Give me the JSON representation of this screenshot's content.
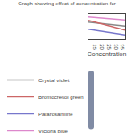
{
  "chart_data": {
    "type": "line",
    "title": "Graph showing effect of concentration for",
    "xlabel": "Concentration",
    "x": [
      10,
      36
    ],
    "series": [
      {
        "name": "Crystal violet",
        "color": "#888888",
        "values": [
          0.72,
          0.55
        ]
      },
      {
        "name": "Bromocresol green",
        "color": "#cc6666",
        "values": [
          0.8,
          0.38
        ]
      },
      {
        "name": "Pararosaníline",
        "color": "#7777cc",
        "values": [
          0.42,
          0.18
        ]
      },
      {
        "name": "Victoria blue",
        "color": "#dd88cc",
        "values": [
          0.95,
          0.82
        ]
      }
    ],
    "xlim": [
      10,
      36
    ],
    "ylim": [
      0.0,
      1.05
    ],
    "xticks": [
      15,
      20,
      25,
      30,
      35
    ],
    "tick_labels": "x",
    "grid": false,
    "legend": "bottom"
  }
}
